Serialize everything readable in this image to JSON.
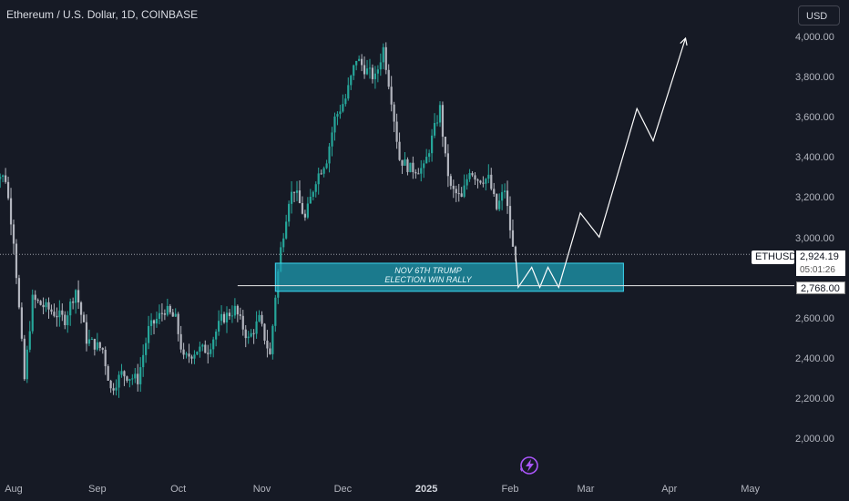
{
  "header": {
    "title": "Ethereum / U.S. Dollar, 1D, COINBASE",
    "currency_button": "USD"
  },
  "price_tags": {
    "symbol": "ETHUSD",
    "last_price": "2,924.19",
    "countdown": "05:01:26",
    "level": "2,768.00"
  },
  "annotation": {
    "line1": "NOV 6TH TRUMP",
    "line2": "ELECTION WIN RALLY"
  },
  "colors": {
    "background": "#161a25",
    "bull_candle": "#26a69a",
    "bear_candle": "#b2b5be",
    "zone_fill": "#1e9bb0",
    "zone_border": "#3cd6f0",
    "projection": "#ffffff",
    "logo": "#a855f7"
  },
  "chart_data": {
    "type": "candlestick",
    "symbol": "ETHUSD",
    "timeframe": "1D",
    "exchange": "COINBASE",
    "y_axis": {
      "ticks": [
        "4,000.00",
        "3,800.00",
        "3,600.00",
        "3,400.00",
        "3,200.00",
        "3,000.00",
        "2,600.00",
        "2,400.00",
        "2,200.00",
        "2,000.00"
      ],
      "tick_values": [
        4000,
        3800,
        3600,
        3400,
        3200,
        3000,
        2600,
        2400,
        2200,
        2000
      ],
      "range": [
        1900,
        4070
      ]
    },
    "x_axis": {
      "ticks": [
        "Aug",
        "Sep",
        "Oct",
        "Nov",
        "Dec",
        "2025",
        "Feb",
        "Mar",
        "Apr",
        "May"
      ],
      "bold_tick": "2025"
    },
    "last_price": 2924.19,
    "support_level": 2768.0,
    "zone": {
      "label": "NOV 6TH TRUMP ELECTION WIN RALLY",
      "from": "2024-11-06",
      "to": "2025-03-15",
      "low": 2740,
      "high": 2880
    },
    "price_path": [
      [
        "2024-07-24",
        3340
      ],
      [
        "2024-07-29",
        3300
      ],
      [
        "2024-08-01",
        3000
      ],
      [
        "2024-08-05",
        2300
      ],
      [
        "2024-08-08",
        2700
      ],
      [
        "2024-08-14",
        2650
      ],
      [
        "2024-08-20",
        2600
      ],
      [
        "2024-08-24",
        2750
      ],
      [
        "2024-08-28",
        2500
      ],
      [
        "2024-09-03",
        2450
      ],
      [
        "2024-09-06",
        2250
      ],
      [
        "2024-09-10",
        2330
      ],
      [
        "2024-09-16",
        2300
      ],
      [
        "2024-09-20",
        2550
      ],
      [
        "2024-09-26",
        2650
      ],
      [
        "2024-09-30",
        2600
      ],
      [
        "2024-10-03",
        2400
      ],
      [
        "2024-10-08",
        2450
      ],
      [
        "2024-10-12",
        2450
      ],
      [
        "2024-10-17",
        2600
      ],
      [
        "2024-10-22",
        2650
      ],
      [
        "2024-10-27",
        2500
      ],
      [
        "2024-10-31",
        2600
      ],
      [
        "2024-11-04",
        2420
      ],
      [
        "2024-11-06",
        2720
      ],
      [
        "2024-11-08",
        2950
      ],
      [
        "2024-11-11",
        3200
      ],
      [
        "2024-11-13",
        3250
      ],
      [
        "2024-11-17",
        3100
      ],
      [
        "2024-11-21",
        3300
      ],
      [
        "2024-11-25",
        3400
      ],
      [
        "2024-11-28",
        3600
      ],
      [
        "2024-12-02",
        3700
      ],
      [
        "2024-12-06",
        3900
      ],
      [
        "2024-12-09",
        3850
      ],
      [
        "2024-12-13",
        3800
      ],
      [
        "2024-12-16",
        3950
      ],
      [
        "2024-12-19",
        3700
      ],
      [
        "2024-12-22",
        3400
      ],
      [
        "2024-12-26",
        3350
      ],
      [
        "2024-12-31",
        3350
      ],
      [
        "2025-01-03",
        3500
      ],
      [
        "2025-01-06",
        3650
      ],
      [
        "2025-01-08",
        3400
      ],
      [
        "2025-01-10",
        3250
      ],
      [
        "2025-01-14",
        3200
      ],
      [
        "2025-01-17",
        3350
      ],
      [
        "2025-01-20",
        3300
      ],
      [
        "2025-01-24",
        3300
      ],
      [
        "2025-01-27",
        3150
      ],
      [
        "2025-01-30",
        3250
      ],
      [
        "2025-02-01",
        3050
      ],
      [
        "2025-02-02",
        2950
      ],
      [
        "2025-02-03",
        2924.19
      ]
    ],
    "projection_path": [
      [
        "2025-02-03",
        2924
      ],
      [
        "2025-02-04",
        2760
      ],
      [
        "2025-02-09",
        2860
      ],
      [
        "2025-02-12",
        2760
      ],
      [
        "2025-02-15",
        2860
      ],
      [
        "2025-02-19",
        2760
      ],
      [
        "2025-02-27",
        3130
      ],
      [
        "2025-03-06",
        3010
      ],
      [
        "2025-03-20",
        3650
      ],
      [
        "2025-03-26",
        3490
      ],
      [
        "2025-04-07",
        4000
      ]
    ]
  }
}
